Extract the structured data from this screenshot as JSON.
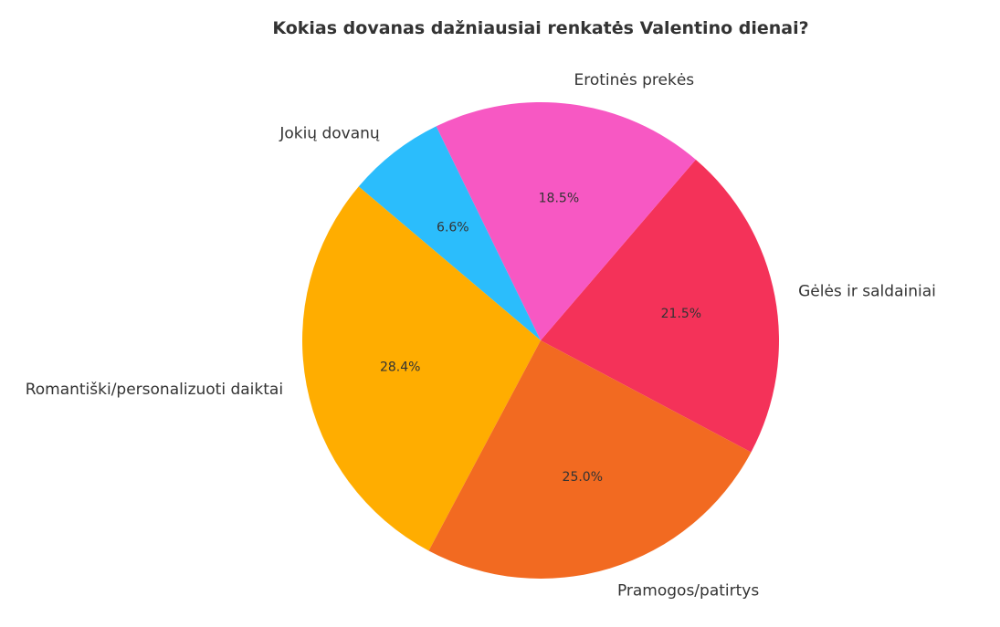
{
  "chart_data": {
    "type": "pie",
    "title": "Kokias dovanas dažniausiai renkatės Valentino dienai?",
    "slices": [
      {
        "label": "Gėlės ir saldainiai",
        "value": 21.5,
        "display": "21.5%",
        "color": "#F43259"
      },
      {
        "label": "Erotinės prekės",
        "value": 18.5,
        "display": "18.5%",
        "color": "#F758C3"
      },
      {
        "label": "Jokių dovanų",
        "value": 6.6,
        "display": "6.6%",
        "color": "#2BBDFC"
      },
      {
        "label": "Romantiški/personalizuoti daiktai",
        "value": 28.4,
        "display": "28.4%",
        "color": "#FFAD00"
      },
      {
        "label": "Pramogos/patirtys",
        "value": 25.0,
        "display": "25.0%",
        "color": "#F26A21"
      }
    ],
    "start_angle_deg": -28,
    "direction": "counterclockwise",
    "legend": "none"
  }
}
